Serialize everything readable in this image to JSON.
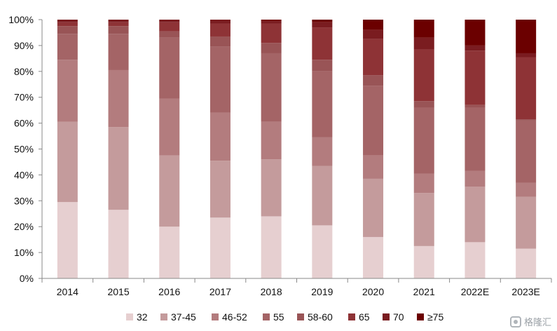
{
  "chart_data": {
    "type": "bar",
    "stacked": true,
    "title": "",
    "xlabel": "",
    "ylabel": "",
    "ylim": [
      0,
      100
    ],
    "yticks": [
      "0%",
      "10%",
      "20%",
      "30%",
      "40%",
      "50%",
      "60%",
      "70%",
      "80%",
      "90%",
      "100%"
    ],
    "categories": [
      "2014",
      "2015",
      "2016",
      "2017",
      "2018",
      "2019",
      "2020",
      "2021",
      "2022E",
      "2023E"
    ],
    "legend_position": "bottom",
    "grid": false,
    "series": [
      {
        "name": "32",
        "color": "#e6cfd0",
        "values": [
          29.5,
          26.5,
          20,
          23.5,
          24,
          20.5,
          16,
          12.5,
          14,
          11.5
        ]
      },
      {
        "name": "37-45",
        "color": "#c49b9c",
        "values": [
          31,
          32,
          27.5,
          22,
          22,
          23,
          22.5,
          20.5,
          21.5,
          20
        ]
      },
      {
        "name": "46-52",
        "color": "#b37c7e",
        "values": [
          24,
          22,
          22,
          18.5,
          14.5,
          11,
          9,
          7.5,
          6,
          5.5
        ]
      },
      {
        "name": "55",
        "color": "#a46466",
        "values": [
          10,
          14,
          23.5,
          25.5,
          26.5,
          25.5,
          27,
          25.5,
          24.5,
          24
        ]
      },
      {
        "name": "58-60",
        "color": "#995456",
        "values": [
          3,
          3,
          2.5,
          4,
          4,
          4.5,
          4,
          2.5,
          1,
          0.5
        ]
      },
      {
        "name": "65",
        "color": "#8e3336",
        "values": [
          1.5,
          1.5,
          3.5,
          5,
          7.5,
          12.5,
          14,
          20,
          21,
          24
        ]
      },
      {
        "name": "70",
        "color": "#7a1c20",
        "values": [
          1,
          1,
          1,
          1.5,
          1,
          2,
          3.5,
          4.5,
          2,
          1.5
        ]
      },
      {
        "name": "≥75",
        "color": "#6b0000",
        "values": [
          0,
          0,
          0,
          0,
          0.5,
          1,
          4,
          7,
          10,
          13
        ]
      }
    ]
  },
  "watermark": {
    "text": "格隆汇"
  }
}
